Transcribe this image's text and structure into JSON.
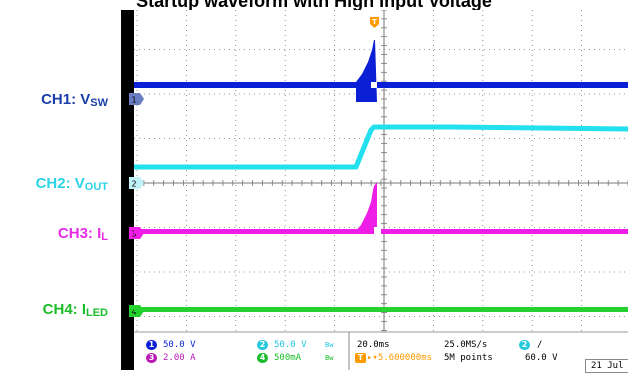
{
  "title": "Startup waveform with High Input Voltage",
  "labels": {
    "ch1": {
      "main": "CH1: V",
      "sub": "SW",
      "color": "#1a3fa8"
    },
    "ch2": {
      "main": "CH2: V",
      "sub": "OUT",
      "color": "#2ad4e8"
    },
    "ch3": {
      "main": "CH3: I",
      "sub": "L",
      "color": "#e62be6"
    },
    "ch4": {
      "main": "CH4: I",
      "sub": "LED",
      "color": "#1bbd2a"
    }
  },
  "colors": {
    "ch1": "#0b1fd6",
    "ch2": "#22e0ee",
    "ch3": "#ee1ee6",
    "ch4": "#25d12e",
    "screen_bg": "#ffffff",
    "grid": "#777777",
    "trigger": "#ff9b00"
  },
  "markers": {
    "ch1": "1",
    "ch2": "2",
    "ch3": "3",
    "ch4": "4",
    "trigger": "T"
  },
  "readout": {
    "ch1": {
      "num": "1",
      "scale": "50.0 V"
    },
    "ch2": {
      "num": "2",
      "scale": "50.0 V",
      "bw": "Bw"
    },
    "ch3": {
      "num": "3",
      "scale": "2.00 A"
    },
    "ch4": {
      "num": "4",
      "scale": "500mA",
      "bw": "Bw"
    },
    "timebase": "20.0ms",
    "sample_rate": "25.0MS/s",
    "record_length": "5M points",
    "trigger_channel": "2",
    "trigger_slope": "/",
    "trigger_level": "60.0 V",
    "trigger_position": "5.600000ms",
    "trigger_icon": "T",
    "date": "21 Jul"
  }
}
